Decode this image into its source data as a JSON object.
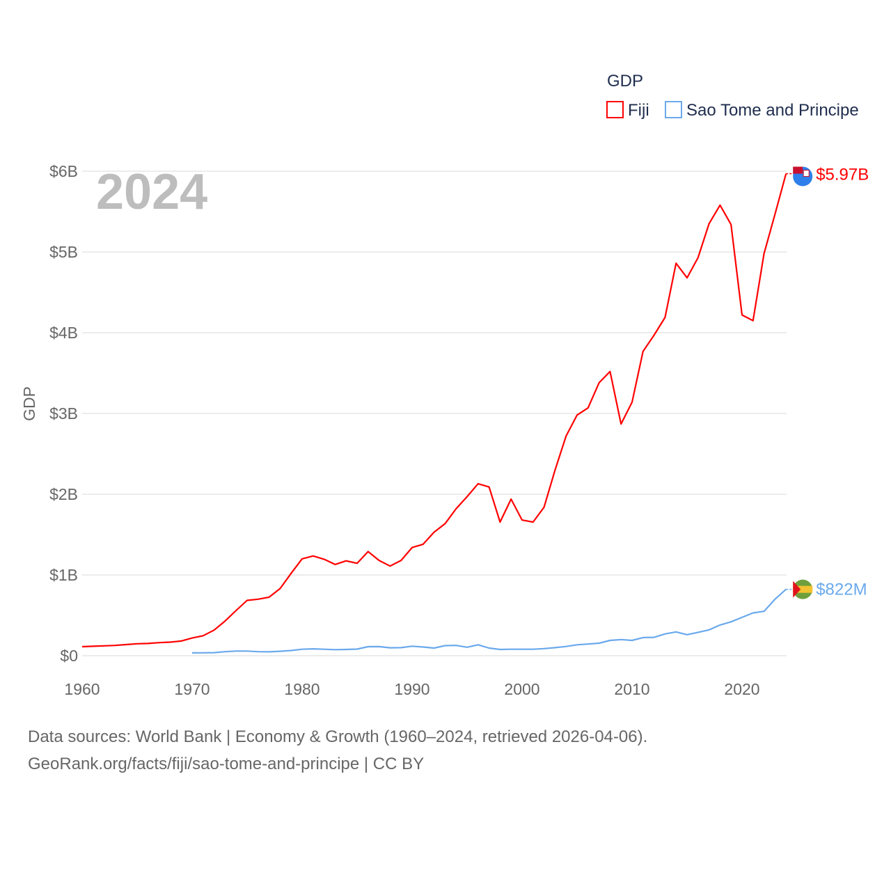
{
  "chart_data": {
    "type": "line",
    "title": "GDP",
    "year_label": "2024",
    "ylabel": "GDP",
    "xlabel": "",
    "xlim": [
      1960,
      2024
    ],
    "ylim": [
      0,
      6
    ],
    "y_unit": "billions USD",
    "grid": true,
    "legend_position": "top-right",
    "x_ticks": [
      1960,
      1970,
      1980,
      1990,
      2000,
      2010,
      2020
    ],
    "x_tick_labels": [
      "1960",
      "1970",
      "1980",
      "1990",
      "2000",
      "2010",
      "2020"
    ],
    "y_ticks": [
      0,
      1,
      2,
      3,
      4,
      5,
      6
    ],
    "y_tick_labels": [
      "$0",
      "$1B",
      "$2B",
      "$3B",
      "$4B",
      "$5B",
      "$6B"
    ],
    "series": [
      {
        "name": "Fiji",
        "color": "#ff0000",
        "end_label": "$5.97B",
        "start_year": 1960,
        "values": [
          0.112,
          0.117,
          0.122,
          0.128,
          0.138,
          0.148,
          0.152,
          0.162,
          0.168,
          0.182,
          0.219,
          0.247,
          0.317,
          0.43,
          0.56,
          0.685,
          0.7,
          0.725,
          0.832,
          1.02,
          1.2,
          1.235,
          1.195,
          1.13,
          1.175,
          1.145,
          1.29,
          1.18,
          1.11,
          1.18,
          1.34,
          1.38,
          1.53,
          1.635,
          1.82,
          1.97,
          2.13,
          2.09,
          1.655,
          1.94,
          1.68,
          1.655,
          1.84,
          2.3,
          2.72,
          2.98,
          3.07,
          3.38,
          3.52,
          2.87,
          3.14,
          3.77,
          3.97,
          4.19,
          4.86,
          4.68,
          4.93,
          5.35,
          5.58,
          5.34,
          4.22,
          4.15,
          4.98,
          5.47,
          5.97
        ]
      },
      {
        "name": "Sao Tome and Principe",
        "color": "#6aa9ec",
        "end_label": "$822M",
        "start_year": 1970,
        "values": [
          0.035,
          0.036,
          0.038,
          0.05,
          0.058,
          0.058,
          0.05,
          0.048,
          0.055,
          0.065,
          0.08,
          0.085,
          0.08,
          0.075,
          0.078,
          0.082,
          0.112,
          0.113,
          0.098,
          0.1,
          0.118,
          0.108,
          0.095,
          0.125,
          0.128,
          0.105,
          0.135,
          0.095,
          0.078,
          0.08,
          0.08,
          0.08,
          0.088,
          0.1,
          0.115,
          0.135,
          0.145,
          0.155,
          0.19,
          0.2,
          0.19,
          0.225,
          0.228,
          0.27,
          0.295,
          0.26,
          0.29,
          0.32,
          0.38,
          0.42,
          0.475,
          0.53,
          0.55,
          0.7,
          0.822
        ]
      }
    ]
  },
  "footer": {
    "line1": "Data sources: World Bank | Economy & Growth (1960–2024, retrieved 2026-04-06).",
    "line2": "GeoRank.org/facts/fiji/sao-tome-and-principe | CC BY"
  }
}
